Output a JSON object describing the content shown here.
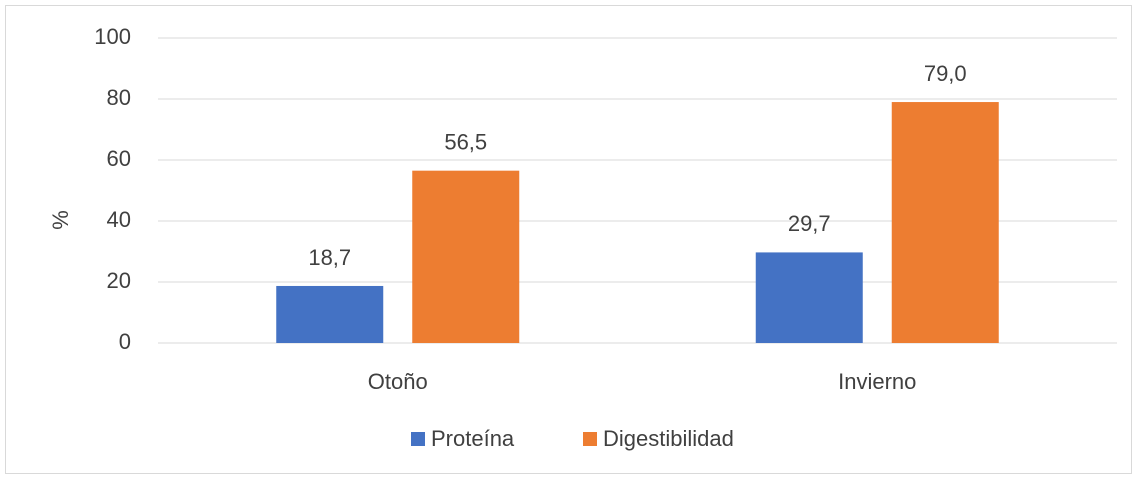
{
  "chart_data": {
    "type": "bar",
    "categories": [
      "Otoño",
      "Invierno"
    ],
    "series": [
      {
        "name": "Proteína",
        "color": "#4472c4",
        "values": [
          18.7,
          29.7
        ],
        "value_labels": [
          "18,7",
          "29,7"
        ]
      },
      {
        "name": "Digestibilidad",
        "color": "#ed7d31",
        "values": [
          56.5,
          79.0
        ],
        "value_labels": [
          "56,5",
          "79,0"
        ]
      }
    ],
    "y_label": "%",
    "ylim": [
      0,
      100
    ],
    "yticks": [
      0,
      20,
      40,
      60,
      80,
      100
    ],
    "grid": true,
    "legend": "bottom"
  }
}
